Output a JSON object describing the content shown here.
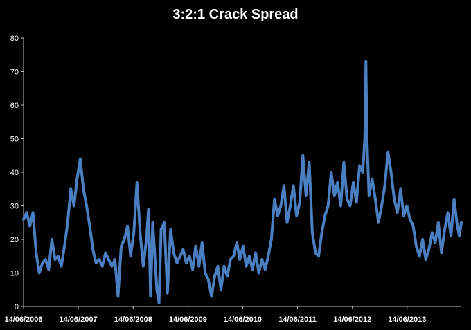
{
  "chart_data": {
    "type": "line",
    "title": "3:2:1 Crack Spread",
    "xlabel": "",
    "ylabel": "",
    "ylim": [
      0,
      80
    ],
    "xlim": [
      "2006-06-14",
      "2014-06-10"
    ],
    "y_ticks": [
      "0",
      "10",
      "20",
      "30",
      "40",
      "50",
      "60",
      "70",
      "80"
    ],
    "x_tick_labels": [
      "14/06/2006",
      "14/06/2007",
      "14/06/2008",
      "14/06/2009",
      "14/06/2010",
      "14/06/2011",
      "14/06/2012",
      "14/06/2013"
    ],
    "x_tick_dates": [
      "2006-06-14",
      "2007-06-14",
      "2008-06-14",
      "2009-06-14",
      "2010-06-14",
      "2011-06-14",
      "2012-06-14",
      "2013-06-14"
    ],
    "grid": false,
    "legend": "none",
    "series": [
      {
        "color": "#4a7fc1",
        "points": [
          [
            "2006-06-14",
            26
          ],
          [
            "2006-07-05",
            28
          ],
          [
            "2006-07-26",
            24
          ],
          [
            "2006-08-16",
            28
          ],
          [
            "2006-09-06",
            16
          ],
          [
            "2006-09-27",
            10
          ],
          [
            "2006-10-18",
            13
          ],
          [
            "2006-11-08",
            14
          ],
          [
            "2006-11-29",
            11
          ],
          [
            "2006-12-20",
            20
          ],
          [
            "2007-01-10",
            14
          ],
          [
            "2007-01-31",
            15
          ],
          [
            "2007-02-21",
            12
          ],
          [
            "2007-03-14",
            18
          ],
          [
            "2007-04-04",
            25
          ],
          [
            "2007-04-25",
            35
          ],
          [
            "2007-05-16",
            30
          ],
          [
            "2007-06-06",
            38
          ],
          [
            "2007-06-27",
            44
          ],
          [
            "2007-07-18",
            35
          ],
          [
            "2007-08-08",
            30
          ],
          [
            "2007-08-29",
            24
          ],
          [
            "2007-09-19",
            17
          ],
          [
            "2007-10-10",
            13
          ],
          [
            "2007-10-31",
            14
          ],
          [
            "2007-11-21",
            12
          ],
          [
            "2007-12-12",
            16
          ],
          [
            "2008-01-02",
            14
          ],
          [
            "2008-01-23",
            12
          ],
          [
            "2008-02-13",
            14
          ],
          [
            "2008-03-05",
            3
          ],
          [
            "2008-03-26",
            18
          ],
          [
            "2008-04-16",
            20
          ],
          [
            "2008-05-07",
            24
          ],
          [
            "2008-05-28",
            15
          ],
          [
            "2008-06-18",
            22
          ],
          [
            "2008-07-09",
            37
          ],
          [
            "2008-07-30",
            22
          ],
          [
            "2008-08-20",
            12
          ],
          [
            "2008-09-10",
            20
          ],
          [
            "2008-09-24",
            29
          ],
          [
            "2008-10-08",
            3
          ],
          [
            "2008-10-22",
            25
          ],
          [
            "2008-11-05",
            15
          ],
          [
            "2008-11-19",
            5
          ],
          [
            "2008-12-03",
            1
          ],
          [
            "2008-12-17",
            23
          ],
          [
            "2009-01-07",
            25
          ],
          [
            "2009-01-28",
            4
          ],
          [
            "2009-02-18",
            23
          ],
          [
            "2009-03-11",
            16
          ],
          [
            "2009-04-01",
            13
          ],
          [
            "2009-04-22",
            15
          ],
          [
            "2009-05-13",
            17
          ],
          [
            "2009-06-03",
            13
          ],
          [
            "2009-06-24",
            15
          ],
          [
            "2009-07-15",
            11
          ],
          [
            "2009-08-05",
            18
          ],
          [
            "2009-08-26",
            12
          ],
          [
            "2009-09-16",
            19
          ],
          [
            "2009-10-07",
            10
          ],
          [
            "2009-10-28",
            8
          ],
          [
            "2009-11-18",
            3
          ],
          [
            "2009-12-09",
            9
          ],
          [
            "2009-12-30",
            12
          ],
          [
            "2010-01-20",
            5
          ],
          [
            "2010-02-10",
            12
          ],
          [
            "2010-03-03",
            9
          ],
          [
            "2010-03-24",
            14
          ],
          [
            "2010-04-14",
            15
          ],
          [
            "2010-05-05",
            19
          ],
          [
            "2010-05-26",
            14
          ],
          [
            "2010-06-16",
            18
          ],
          [
            "2010-07-07",
            12
          ],
          [
            "2010-07-28",
            15
          ],
          [
            "2010-08-18",
            11
          ],
          [
            "2010-09-08",
            16
          ],
          [
            "2010-09-29",
            10
          ],
          [
            "2010-10-20",
            14
          ],
          [
            "2010-11-10",
            11
          ],
          [
            "2010-12-01",
            15
          ],
          [
            "2010-12-22",
            20
          ],
          [
            "2011-01-12",
            32
          ],
          [
            "2011-02-02",
            27
          ],
          [
            "2011-02-23",
            30
          ],
          [
            "2011-03-16",
            36
          ],
          [
            "2011-04-06",
            25
          ],
          [
            "2011-04-27",
            30
          ],
          [
            "2011-05-18",
            36
          ],
          [
            "2011-06-08",
            27
          ],
          [
            "2011-06-29",
            31
          ],
          [
            "2011-07-20",
            45
          ],
          [
            "2011-08-10",
            33
          ],
          [
            "2011-08-31",
            43
          ],
          [
            "2011-09-21",
            22
          ],
          [
            "2011-10-12",
            16
          ],
          [
            "2011-11-02",
            15
          ],
          [
            "2011-11-23",
            22
          ],
          [
            "2011-12-14",
            27
          ],
          [
            "2012-01-04",
            30
          ],
          [
            "2012-01-25",
            40
          ],
          [
            "2012-02-15",
            33
          ],
          [
            "2012-03-07",
            37
          ],
          [
            "2012-03-28",
            30
          ],
          [
            "2012-04-18",
            43
          ],
          [
            "2012-05-09",
            32
          ],
          [
            "2012-05-30",
            30
          ],
          [
            "2012-06-20",
            37
          ],
          [
            "2012-07-11",
            31
          ],
          [
            "2012-08-01",
            42
          ],
          [
            "2012-08-22",
            40
          ],
          [
            "2012-09-05",
            50
          ],
          [
            "2012-09-12",
            73
          ],
          [
            "2012-09-19",
            50
          ],
          [
            "2012-10-03",
            33
          ],
          [
            "2012-10-24",
            38
          ],
          [
            "2012-11-14",
            32
          ],
          [
            "2012-12-05",
            25
          ],
          [
            "2012-12-26",
            30
          ],
          [
            "2013-01-16",
            36
          ],
          [
            "2013-02-06",
            46
          ],
          [
            "2013-02-27",
            40
          ],
          [
            "2013-03-20",
            32
          ],
          [
            "2013-04-10",
            28
          ],
          [
            "2013-05-01",
            35
          ],
          [
            "2013-05-22",
            27
          ],
          [
            "2013-06-12",
            30
          ],
          [
            "2013-07-03",
            26
          ],
          [
            "2013-07-24",
            24
          ],
          [
            "2013-08-14",
            18
          ],
          [
            "2013-09-04",
            15
          ],
          [
            "2013-09-25",
            20
          ],
          [
            "2013-10-16",
            14
          ],
          [
            "2013-11-06",
            17
          ],
          [
            "2013-11-27",
            22
          ],
          [
            "2013-12-18",
            19
          ],
          [
            "2014-01-08",
            25
          ],
          [
            "2014-01-29",
            16
          ],
          [
            "2014-02-19",
            23
          ],
          [
            "2014-03-12",
            28
          ],
          [
            "2014-04-02",
            21
          ],
          [
            "2014-04-23",
            32
          ],
          [
            "2014-05-14",
            24
          ],
          [
            "2014-05-28",
            21
          ],
          [
            "2014-06-10",
            25
          ]
        ]
      }
    ]
  }
}
